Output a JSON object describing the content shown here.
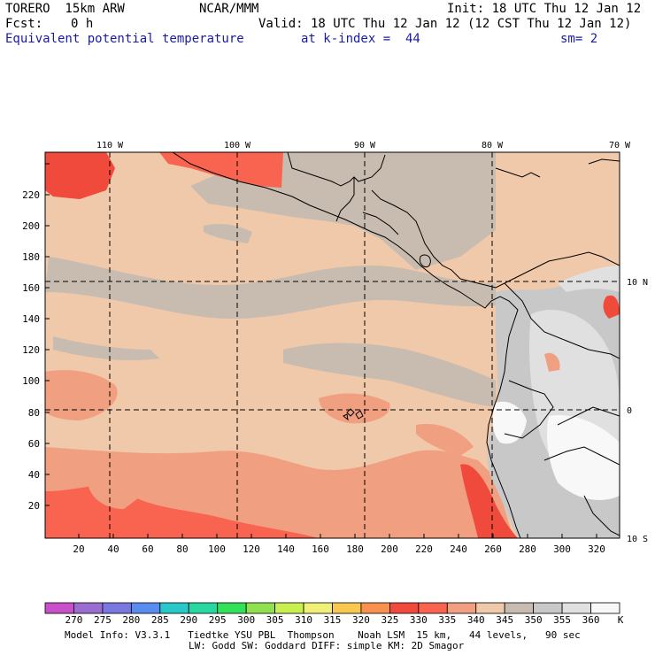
{
  "header": {
    "model": "TORERO  15km ARW",
    "org": "NCAR/MMM",
    "init": "Init: 18 UTC Thu 12 Jan 12",
    "fcst_label": "Fcst:",
    "fcst_value": "0 h",
    "valid": "Valid: 18 UTC Thu 12 Jan 12 (12 CST Thu 12 Jan 12)",
    "field": "Equivalent potential temperature",
    "level": "at k-index =  44",
    "smooth": "sm= 2"
  },
  "map": {
    "top_lon_labels": [
      "110 W",
      "100 W",
      "90 W",
      "80 W",
      "70 W"
    ],
    "right_lat_labels": [
      "10 N",
      "0",
      "10 S"
    ],
    "left_axis_ticks": [
      "20",
      "40",
      "60",
      "80",
      "100",
      "120",
      "140",
      "160",
      "180",
      "200",
      "220"
    ],
    "bottom_axis_ticks": [
      "20",
      "40",
      "60",
      "80",
      "100",
      "120",
      "140",
      "160",
      "180",
      "200",
      "220",
      "240",
      "260",
      "280",
      "300",
      "320"
    ]
  },
  "colorbar": {
    "labels": [
      "270",
      "275",
      "280",
      "285",
      "290",
      "295",
      "300",
      "305",
      "310",
      "315",
      "320",
      "325",
      "330",
      "335",
      "340",
      "345",
      "350",
      "355",
      "360"
    ],
    "unit": "K",
    "colors": [
      "#c850c8",
      "#9a6ed0",
      "#7878e0",
      "#5a8cf0",
      "#28c8c8",
      "#28d8a0",
      "#32e05a",
      "#90e050",
      "#c8f050",
      "#f0f078",
      "#f8c850",
      "#f89050",
      "#f04a3c",
      "#f86450",
      "#f0a080",
      "#f0c8aa",
      "#c8bcb0",
      "#c8c8c8",
      "#e0e0e0",
      "#f8f8f8"
    ]
  },
  "footer": {
    "line1": "Model Info: V3.3.1   Tiedtke YSU PBL  Thompson    Noah LSM  15 km,   44 levels,   90 sec",
    "line2": "LW: Godd SW: Goddard DIFF: simple KM: 2D Smagor"
  }
}
